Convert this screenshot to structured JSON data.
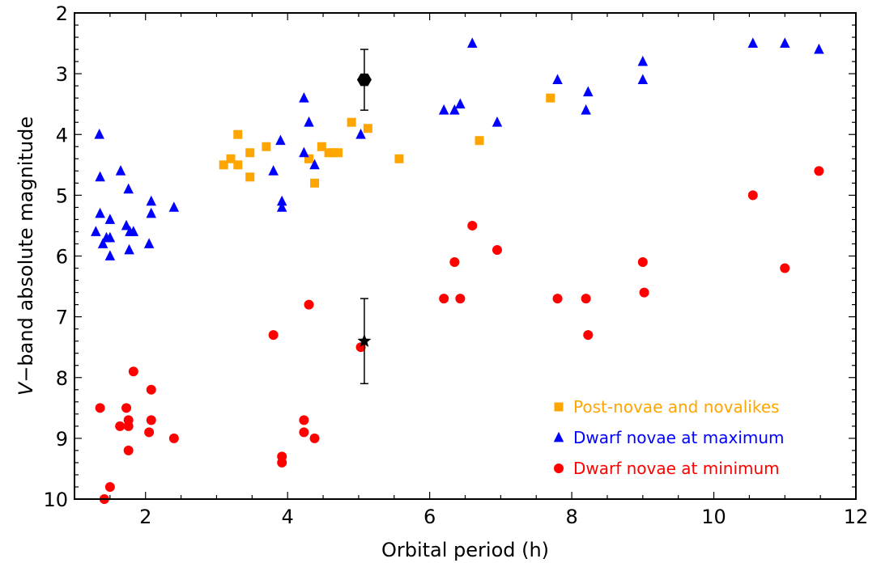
{
  "chart_data": {
    "type": "scatter",
    "title": "",
    "xlabel": "Orbital period (h)",
    "ylabel_italic": "V",
    "ylabel_rest": "−band absolute magnitude",
    "xlim": [
      1,
      12
    ],
    "ylim": [
      2,
      10
    ],
    "y_inverted": true,
    "grid": false,
    "legend_position": "lower-right",
    "x_ticks": [
      2,
      4,
      6,
      8,
      10,
      12
    ],
    "y_ticks": [
      2,
      3,
      4,
      5,
      6,
      7,
      8,
      9,
      10
    ],
    "series": [
      {
        "name": "Post-novae and novalikes",
        "marker": "square",
        "color": "#FFA500",
        "points": [
          [
            3.1,
            4.5
          ],
          [
            3.2,
            4.4
          ],
          [
            3.3,
            4.5
          ],
          [
            3.3,
            4.0
          ],
          [
            3.47,
            4.3
          ],
          [
            3.47,
            4.7
          ],
          [
            3.7,
            4.2
          ],
          [
            4.3,
            4.4
          ],
          [
            4.38,
            4.8
          ],
          [
            4.48,
            4.2
          ],
          [
            4.58,
            4.3
          ],
          [
            4.64,
            4.3
          ],
          [
            4.71,
            4.3
          ],
          [
            4.9,
            3.8
          ],
          [
            5.13,
            3.9
          ],
          [
            5.57,
            4.4
          ],
          [
            6.7,
            4.1
          ],
          [
            7.7,
            3.4
          ]
        ]
      },
      {
        "name": "Dwarf novae at maximum",
        "marker": "triangle",
        "color": "#0000FF",
        "points": [
          [
            1.3,
            5.6
          ],
          [
            1.35,
            4.0
          ],
          [
            1.36,
            4.7
          ],
          [
            1.36,
            5.3
          ],
          [
            1.4,
            5.8
          ],
          [
            1.45,
            5.7
          ],
          [
            1.5,
            5.4
          ],
          [
            1.5,
            5.7
          ],
          [
            1.5,
            6.0
          ],
          [
            1.65,
            4.6
          ],
          [
            1.73,
            5.5
          ],
          [
            1.76,
            4.9
          ],
          [
            1.77,
            5.9
          ],
          [
            1.78,
            5.6
          ],
          [
            1.83,
            5.6
          ],
          [
            2.05,
            5.8
          ],
          [
            2.08,
            5.1
          ],
          [
            2.08,
            5.3
          ],
          [
            2.4,
            5.2
          ],
          [
            3.8,
            4.6
          ],
          [
            3.9,
            4.1
          ],
          [
            3.92,
            5.1
          ],
          [
            3.92,
            5.2
          ],
          [
            4.23,
            3.4
          ],
          [
            4.23,
            4.3
          ],
          [
            4.3,
            3.8
          ],
          [
            4.38,
            4.5
          ],
          [
            5.03,
            4.0
          ],
          [
            6.2,
            3.6
          ],
          [
            6.35,
            3.6
          ],
          [
            6.43,
            3.5
          ],
          [
            6.6,
            2.5
          ],
          [
            6.95,
            3.8
          ],
          [
            7.8,
            3.1
          ],
          [
            8.2,
            3.6
          ],
          [
            8.23,
            3.3
          ],
          [
            9.0,
            2.8
          ],
          [
            9.0,
            3.1
          ],
          [
            10.55,
            2.5
          ],
          [
            11.0,
            2.5
          ],
          [
            11.48,
            2.6
          ]
        ]
      },
      {
        "name": "Dwarf novae at minimum",
        "marker": "circle",
        "color": "#FF0000",
        "points": [
          [
            1.36,
            8.5
          ],
          [
            1.42,
            10.0
          ],
          [
            1.5,
            9.8
          ],
          [
            1.64,
            8.8
          ],
          [
            1.73,
            8.5
          ],
          [
            1.76,
            8.7
          ],
          [
            1.76,
            8.8
          ],
          [
            1.76,
            9.2
          ],
          [
            1.83,
            7.9
          ],
          [
            2.05,
            8.9
          ],
          [
            2.08,
            8.7
          ],
          [
            2.08,
            8.2
          ],
          [
            2.4,
            9.0
          ],
          [
            3.8,
            7.3
          ],
          [
            3.92,
            9.3
          ],
          [
            3.92,
            9.4
          ],
          [
            4.23,
            8.7
          ],
          [
            4.23,
            8.9
          ],
          [
            4.3,
            6.8
          ],
          [
            4.38,
            9.0
          ],
          [
            5.03,
            7.5
          ],
          [
            6.2,
            6.7
          ],
          [
            6.35,
            6.1
          ],
          [
            6.43,
            6.7
          ],
          [
            6.6,
            5.5
          ],
          [
            6.95,
            5.9
          ],
          [
            7.8,
            6.7
          ],
          [
            8.2,
            6.7
          ],
          [
            8.23,
            7.3
          ],
          [
            9.0,
            6.1
          ],
          [
            9.02,
            6.6
          ],
          [
            10.55,
            5.0
          ],
          [
            11.0,
            6.2
          ],
          [
            11.48,
            4.6
          ]
        ]
      }
    ],
    "highlights": [
      {
        "marker": "hexagon",
        "color": "#000000",
        "x": 5.08,
        "y": 3.1,
        "y_err": [
          2.6,
          3.6
        ]
      },
      {
        "marker": "star",
        "color": "#000000",
        "x": 5.08,
        "y": 7.4,
        "y_err": [
          6.7,
          8.1
        ]
      }
    ]
  }
}
